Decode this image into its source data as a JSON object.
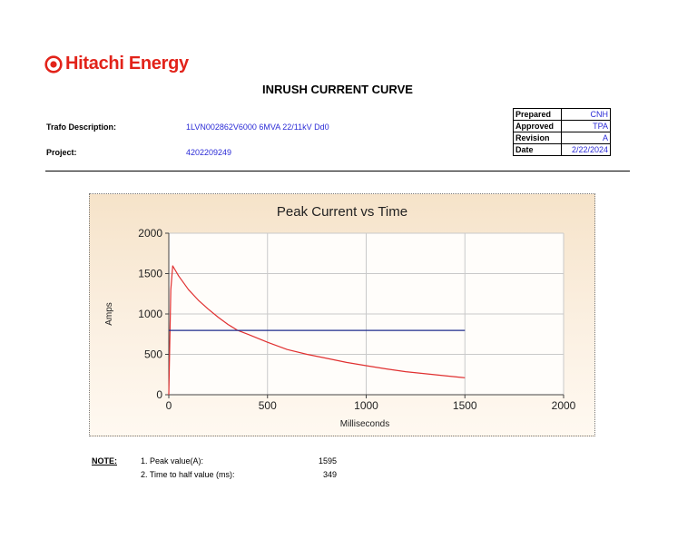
{
  "brand": {
    "name": "Hitachi Energy",
    "color": "#e2231a",
    "logo_icon": "hitachi-ring-logo"
  },
  "document": {
    "title": "INRUSH CURRENT CURVE"
  },
  "fields": {
    "trafo_label": "Trafo Description:",
    "trafo_value": "1LVN002862V6000 6MVA 22/11kV Dd0",
    "project_label": "Project:",
    "project_value": "4202209249"
  },
  "approval": [
    {
      "key": "Prepared",
      "value": "CNH"
    },
    {
      "key": "Approved",
      "value": "TPA"
    },
    {
      "key": "Revision",
      "value": "A"
    },
    {
      "key": "Date",
      "value": "2/22/2024"
    }
  ],
  "chart_data": {
    "type": "line",
    "title": "Peak Current vs Time",
    "xlabel": "Milliseconds",
    "ylabel": "Amps",
    "xlim": [
      0,
      2000
    ],
    "ylim": [
      0,
      2000
    ],
    "xticks": [
      "0",
      "500",
      "1000",
      "1500",
      "2000"
    ],
    "yticks": [
      "0",
      "500",
      "1000",
      "1500",
      "2000"
    ],
    "grid": true,
    "series": [
      {
        "color": "#e03030",
        "x": [
          0,
          10,
          20,
          50,
          100,
          150,
          200,
          250,
          300,
          349,
          400,
          500,
          600,
          700,
          800,
          900,
          1000,
          1100,
          1200,
          1300,
          1400,
          1500
        ],
        "y": [
          0,
          1300,
          1595,
          1470,
          1300,
          1170,
          1060,
          960,
          870,
          797,
          750,
          650,
          560,
          500,
          450,
          400,
          360,
          320,
          285,
          260,
          235,
          210
        ]
      },
      {
        "color": "#1f2d8c",
        "x": [
          0,
          1500
        ],
        "y": [
          797,
          797
        ]
      }
    ]
  },
  "notes": {
    "heading": "NOTE:",
    "items": [
      {
        "label": "1. Peak value(A):",
        "value": "1595"
      },
      {
        "label": "2. Time to half value (ms):",
        "value": "349"
      }
    ]
  }
}
